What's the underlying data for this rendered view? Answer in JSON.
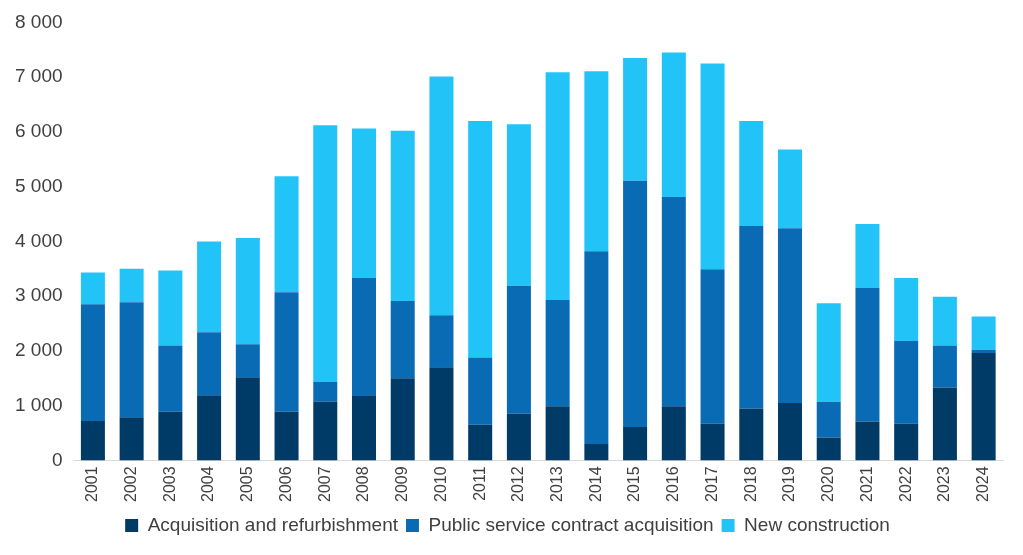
{
  "chart_data": {
    "type": "bar",
    "stacked": true,
    "legend": "bottom",
    "grid": false,
    "categories": [
      "2001",
      "2002",
      "2003",
      "2004",
      "2005",
      "2006",
      "2007",
      "2008",
      "2009",
      "2010",
      "2011",
      "2012",
      "2013",
      "2014",
      "2015",
      "2016",
      "2017",
      "2018",
      "2019",
      "2020",
      "2021",
      "2022",
      "2023",
      "2024"
    ],
    "ylim": [
      0,
      8000
    ],
    "yticks": [
      {
        "value": 0,
        "label": "0"
      },
      {
        "value": 1000,
        "label": "1 000"
      },
      {
        "value": 2000,
        "label": "2 000"
      },
      {
        "value": 3000,
        "label": "3 000"
      },
      {
        "value": 4000,
        "label": "4 000"
      },
      {
        "value": 5000,
        "label": "5 000"
      },
      {
        "value": 6000,
        "label": "6 000"
      },
      {
        "value": 7000,
        "label": "7 000"
      },
      {
        "value": 8000,
        "label": "8 000"
      }
    ],
    "series": [
      {
        "name": "Acquisition and refurbishment",
        "color": "#003a66",
        "values": [
          720,
          790,
          890,
          1190,
          1520,
          890,
          1070,
          1190,
          1500,
          1700,
          650,
          850,
          990,
          300,
          610,
          990,
          670,
          950,
          1050,
          420,
          710,
          670,
          1330,
          1960
        ]
      },
      {
        "name": "Public service contract acquisition",
        "color": "#0a6bb5",
        "values": [
          2130,
          2100,
          1210,
          1150,
          600,
          2180,
          360,
          2140,
          1410,
          950,
          1230,
          2340,
          1940,
          3520,
          4500,
          3820,
          2820,
          3330,
          3190,
          650,
          2440,
          1510,
          770,
          60
        ]
      },
      {
        "name": "New construction",
        "color": "#22c4f8",
        "values": [
          580,
          610,
          1370,
          1660,
          1940,
          2120,
          4690,
          2730,
          3110,
          4360,
          4320,
          2950,
          4160,
          3290,
          2240,
          2640,
          3760,
          1920,
          1440,
          1800,
          1170,
          1150,
          890,
          610
        ]
      }
    ]
  }
}
